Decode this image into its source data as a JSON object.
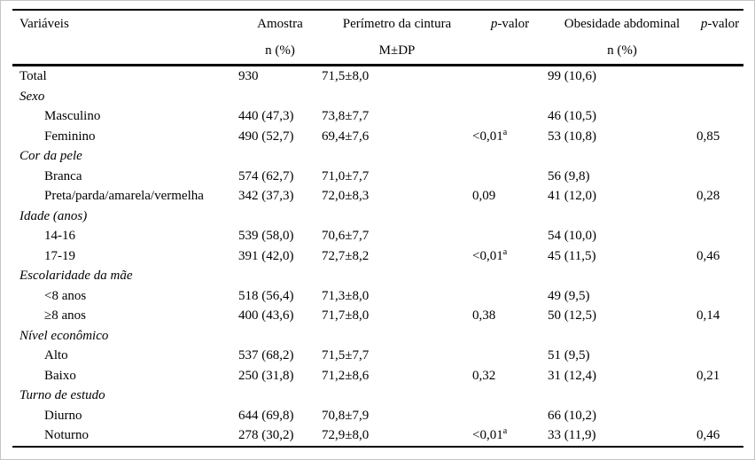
{
  "table": {
    "header": {
      "variaveis": {
        "line1": "Variáveis",
        "line2": ""
      },
      "amostra": {
        "line1": "Amostra",
        "line2": "n (%)"
      },
      "perimetro": {
        "line1": "Perímetro da cintura",
        "line2": "M±DP"
      },
      "pvalor1": {
        "italic": "p",
        "rest": "-valor",
        "line2": ""
      },
      "obesidade": {
        "line1": "Obesidade abdominal",
        "line2": "n (%)"
      },
      "pvalor2": {
        "italic": "p",
        "rest": "-valor",
        "line2": ""
      }
    },
    "rows": [
      {
        "kind": "total",
        "label": "Total",
        "amostra": "930",
        "perimetro": "71,5±8,0",
        "p1": "",
        "p1sup": "",
        "obesidade": "99 (10,6)",
        "p2": ""
      },
      {
        "kind": "category",
        "label": "Sexo",
        "amostra": "",
        "perimetro": "",
        "p1": "",
        "p1sup": "",
        "obesidade": "",
        "p2": ""
      },
      {
        "kind": "item",
        "label": "Masculino",
        "amostra": "440 (47,3)",
        "perimetro": "73,8±7,7",
        "p1": "",
        "p1sup": "",
        "obesidade": "46 (10,5)",
        "p2": ""
      },
      {
        "kind": "item",
        "label": "Feminino",
        "amostra": "490 (52,7)",
        "perimetro": "69,4±7,6",
        "p1": "<0,01",
        "p1sup": "a",
        "obesidade": "53 (10,8)",
        "p2": "0,85"
      },
      {
        "kind": "category",
        "label": "Cor da pele",
        "amostra": "",
        "perimetro": "",
        "p1": "",
        "p1sup": "",
        "obesidade": "",
        "p2": ""
      },
      {
        "kind": "item",
        "label": "Branca",
        "amostra": "574 (62,7)",
        "perimetro": "71,0±7,7",
        "p1": "",
        "p1sup": "",
        "obesidade": "56 (9,8)",
        "p2": ""
      },
      {
        "kind": "item",
        "label": "Preta/parda/amarela/vermelha",
        "amostra": "342 (37,3)",
        "perimetro": "72,0±8,3",
        "p1": "0,09",
        "p1sup": "",
        "obesidade": "41 (12,0)",
        "p2": "0,28"
      },
      {
        "kind": "category",
        "label": "Idade (anos)",
        "amostra": "",
        "perimetro": "",
        "p1": "",
        "p1sup": "",
        "obesidade": "",
        "p2": ""
      },
      {
        "kind": "item",
        "label": "14-16",
        "amostra": "539 (58,0)",
        "perimetro": "70,6±7,7",
        "p1": "",
        "p1sup": "",
        "obesidade": "54 (10,0)",
        "p2": ""
      },
      {
        "kind": "item",
        "label": "17-19",
        "amostra": "391 (42,0)",
        "perimetro": "72,7±8,2",
        "p1": "<0,01",
        "p1sup": "a",
        "obesidade": "45 (11,5)",
        "p2": "0,46"
      },
      {
        "kind": "category",
        "label": "Escolaridade da mãe",
        "amostra": "",
        "perimetro": "",
        "p1": "",
        "p1sup": "",
        "obesidade": "",
        "p2": ""
      },
      {
        "kind": "item",
        "label": "<8 anos",
        "amostra": "518 (56,4)",
        "perimetro": "71,3±8,0",
        "p1": "",
        "p1sup": "",
        "obesidade": "49 (9,5)",
        "p2": ""
      },
      {
        "kind": "item",
        "label": "≥8 anos",
        "amostra": "400 (43,6)",
        "perimetro": "71,7±8,0",
        "p1": "0,38",
        "p1sup": "",
        "obesidade": "50 (12,5)",
        "p2": "0,14"
      },
      {
        "kind": "category",
        "label": "Nível econômico",
        "amostra": "",
        "perimetro": "",
        "p1": "",
        "p1sup": "",
        "obesidade": "",
        "p2": ""
      },
      {
        "kind": "item",
        "label": "Alto",
        "amostra": "537 (68,2)",
        "perimetro": "71,5±7,7",
        "p1": "",
        "p1sup": "",
        "obesidade": "51 (9,5)",
        "p2": ""
      },
      {
        "kind": "item",
        "label": "Baixo",
        "amostra": "250 (31,8)",
        "perimetro": "71,2±8,6",
        "p1": "0,32",
        "p1sup": "",
        "obesidade": "31 (12,4)",
        "p2": "0,21"
      },
      {
        "kind": "category",
        "label": "Turno de estudo",
        "amostra": "",
        "perimetro": "",
        "p1": "",
        "p1sup": "",
        "obesidade": "",
        "p2": ""
      },
      {
        "kind": "item",
        "label": "Diurno",
        "amostra": "644 (69,8)",
        "perimetro": "70,8±7,9",
        "p1": "",
        "p1sup": "",
        "obesidade": "66 (10,2)",
        "p2": ""
      },
      {
        "kind": "item",
        "label": "Noturno",
        "amostra": "278 (30,2)",
        "perimetro": "72,9±8,0",
        "p1": "<0,01",
        "p1sup": "a",
        "obesidade": "33 (11,9)",
        "p2": "0,46"
      }
    ],
    "colors": {
      "rule": "#000000",
      "frame": "#c4c4c4",
      "text": "#000000",
      "background": "#ffffff"
    }
  }
}
